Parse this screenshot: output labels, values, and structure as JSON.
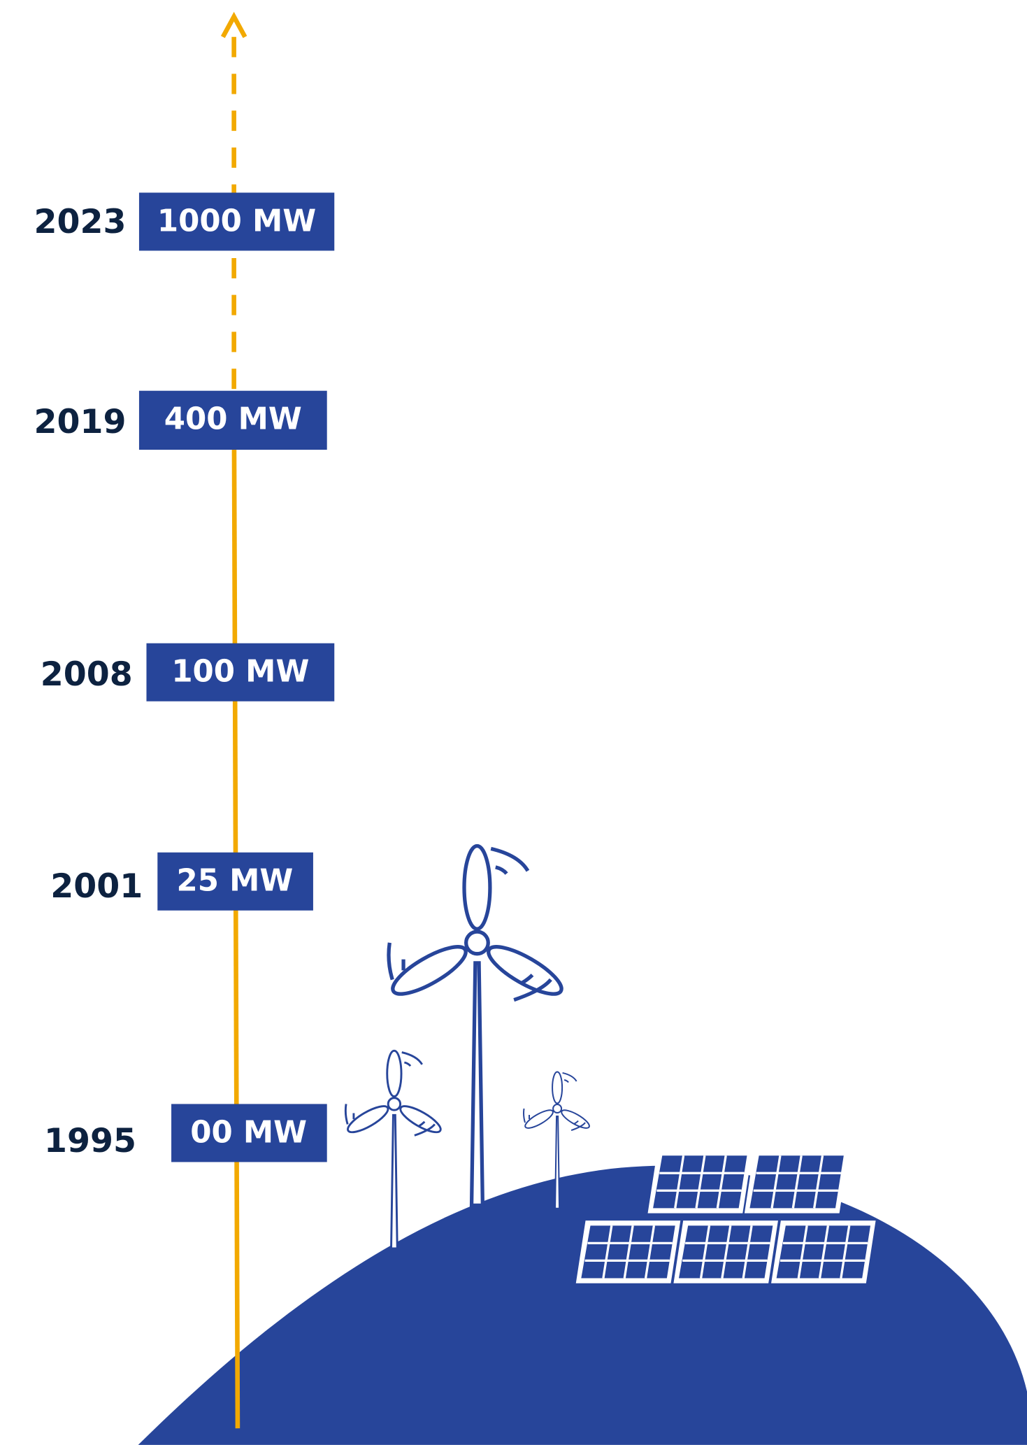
{
  "milestones": [
    {
      "year": "2023",
      "capacity": "1000 MW"
    },
    {
      "year": "2019",
      "capacity": "400 MW"
    },
    {
      "year": "2008",
      "capacity": "100 MW"
    },
    {
      "year": "2001",
      "capacity": "25 MW"
    },
    {
      "year": "1995",
      "capacity": "00 MW"
    }
  ]
}
